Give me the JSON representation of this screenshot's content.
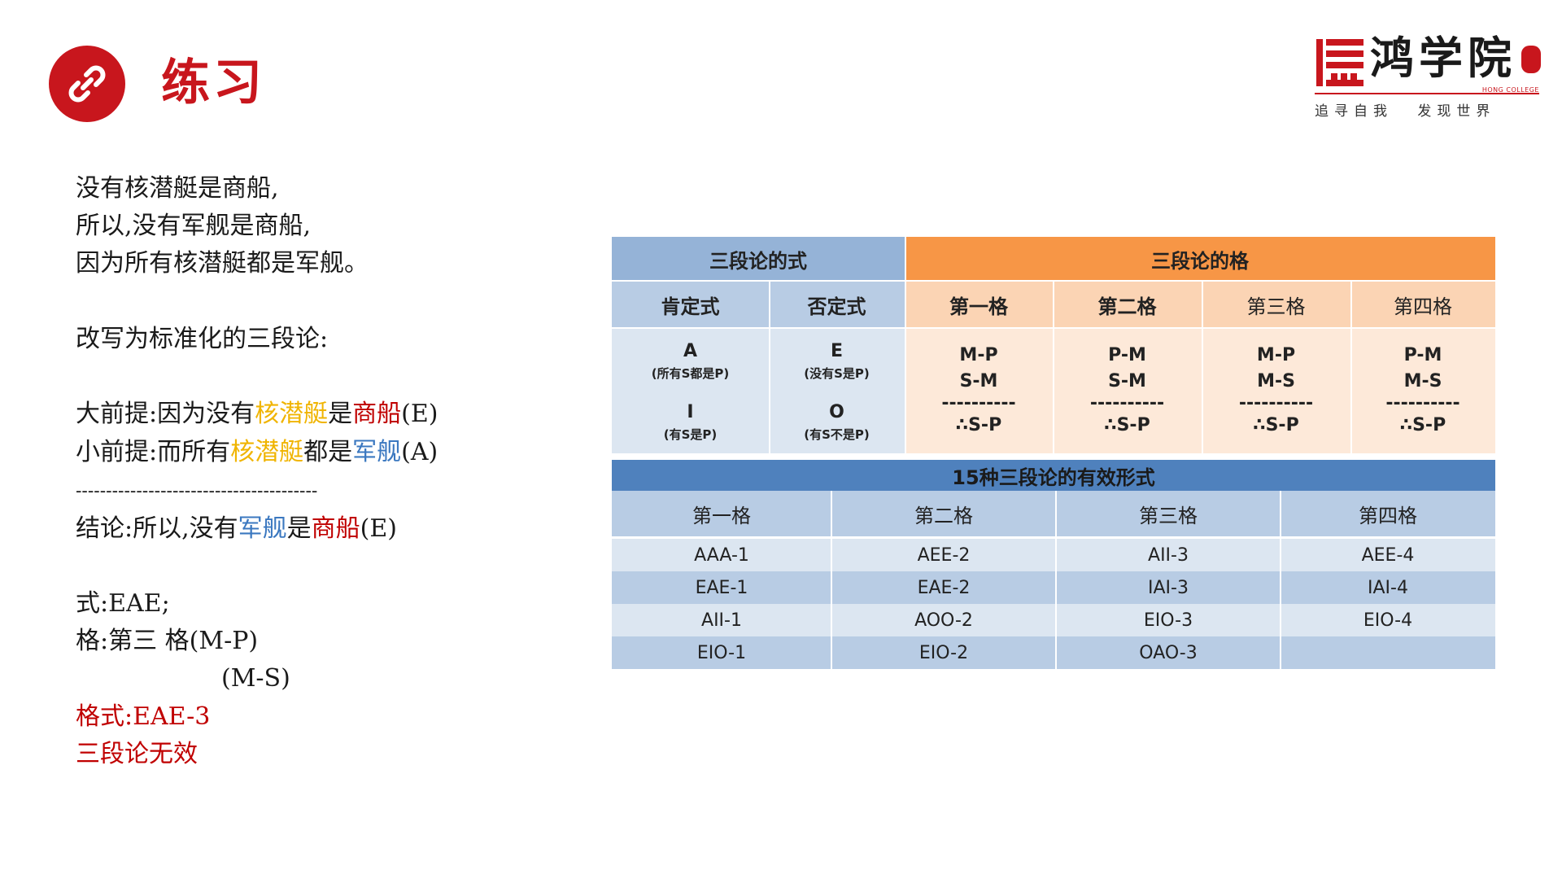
{
  "header": {
    "title": "练习",
    "title_icon": "link-icon",
    "logo": {
      "name": "鸿学院",
      "english": "HONG COLLEGE",
      "slogan": "追寻自我 发现世界"
    }
  },
  "text": {
    "lines": [
      "没有核潜艇是商船,",
      "所以,没有军舰是商船,",
      "因为所有核潜艇都是军舰。",
      "改写为标准化的三段论:"
    ],
    "major": {
      "prefix": "大前提:因为没有",
      "term1": "核潜艇",
      "mid": "是",
      "term2": "商船",
      "suffix": "(E)"
    },
    "minor": {
      "prefix": "小前提:而所有",
      "term1": "核潜艇",
      "mid": "都是",
      "term2": "军舰",
      "suffix": "(A)"
    },
    "divider": "----------------------------------------",
    "conclusion": {
      "prefix": "结论:所以,没有",
      "term1": "军舰",
      "mid": "是",
      "term2": "商船",
      "suffix": "(E)"
    },
    "mood": "式:EAE;",
    "figure1": "格:第三 格(M-P)",
    "figure2": "(M-S)",
    "result1": "格式:EAE-3",
    "result2": "三段论无效"
  },
  "colors": {
    "accent_red": "#c8161d",
    "gold": "#f0b400",
    "blue": "#3b78c0"
  },
  "table": {
    "mood_header": "三段论的式",
    "figure_header": "三段论的格",
    "affirmative": "肯定式",
    "negative": "否定式",
    "figures": [
      "第一格",
      "第二格",
      "第三格",
      "第四格"
    ],
    "moods": {
      "A": {
        "letter": "A",
        "desc": "(所有S都是P)"
      },
      "E": {
        "letter": "E",
        "desc": "(没有S是P)"
      },
      "I": {
        "letter": "I",
        "desc": "(有S是P)"
      },
      "O": {
        "letter": "O",
        "desc": "(有S不是P)"
      }
    },
    "figure_forms": [
      {
        "major": "M-P",
        "minor": "S-M",
        "dash": "----------",
        "concl": "∴S-P"
      },
      {
        "major": "P-M",
        "minor": "S-M",
        "dash": "----------",
        "concl": "∴S-P"
      },
      {
        "major": "M-P",
        "minor": "M-S",
        "dash": "----------",
        "concl": "∴S-P"
      },
      {
        "major": "P-M",
        "minor": "M-S",
        "dash": "----------",
        "concl": "∴S-P"
      }
    ],
    "valid_title": "15种三段论的有效形式",
    "valid_headers": [
      "第一格",
      "第二格",
      "第三格",
      "第四格"
    ],
    "valid_rows": [
      [
        "AAA-1",
        "AEE-2",
        "AII-3",
        "AEE-4"
      ],
      [
        "EAE-1",
        "EAE-2",
        "IAI-3",
        "IAI-4"
      ],
      [
        "AII-1",
        "AOO-2",
        "EIO-3",
        "EIO-4"
      ],
      [
        "EIO-1",
        "EIO-2",
        "OAO-3",
        ""
      ]
    ]
  }
}
